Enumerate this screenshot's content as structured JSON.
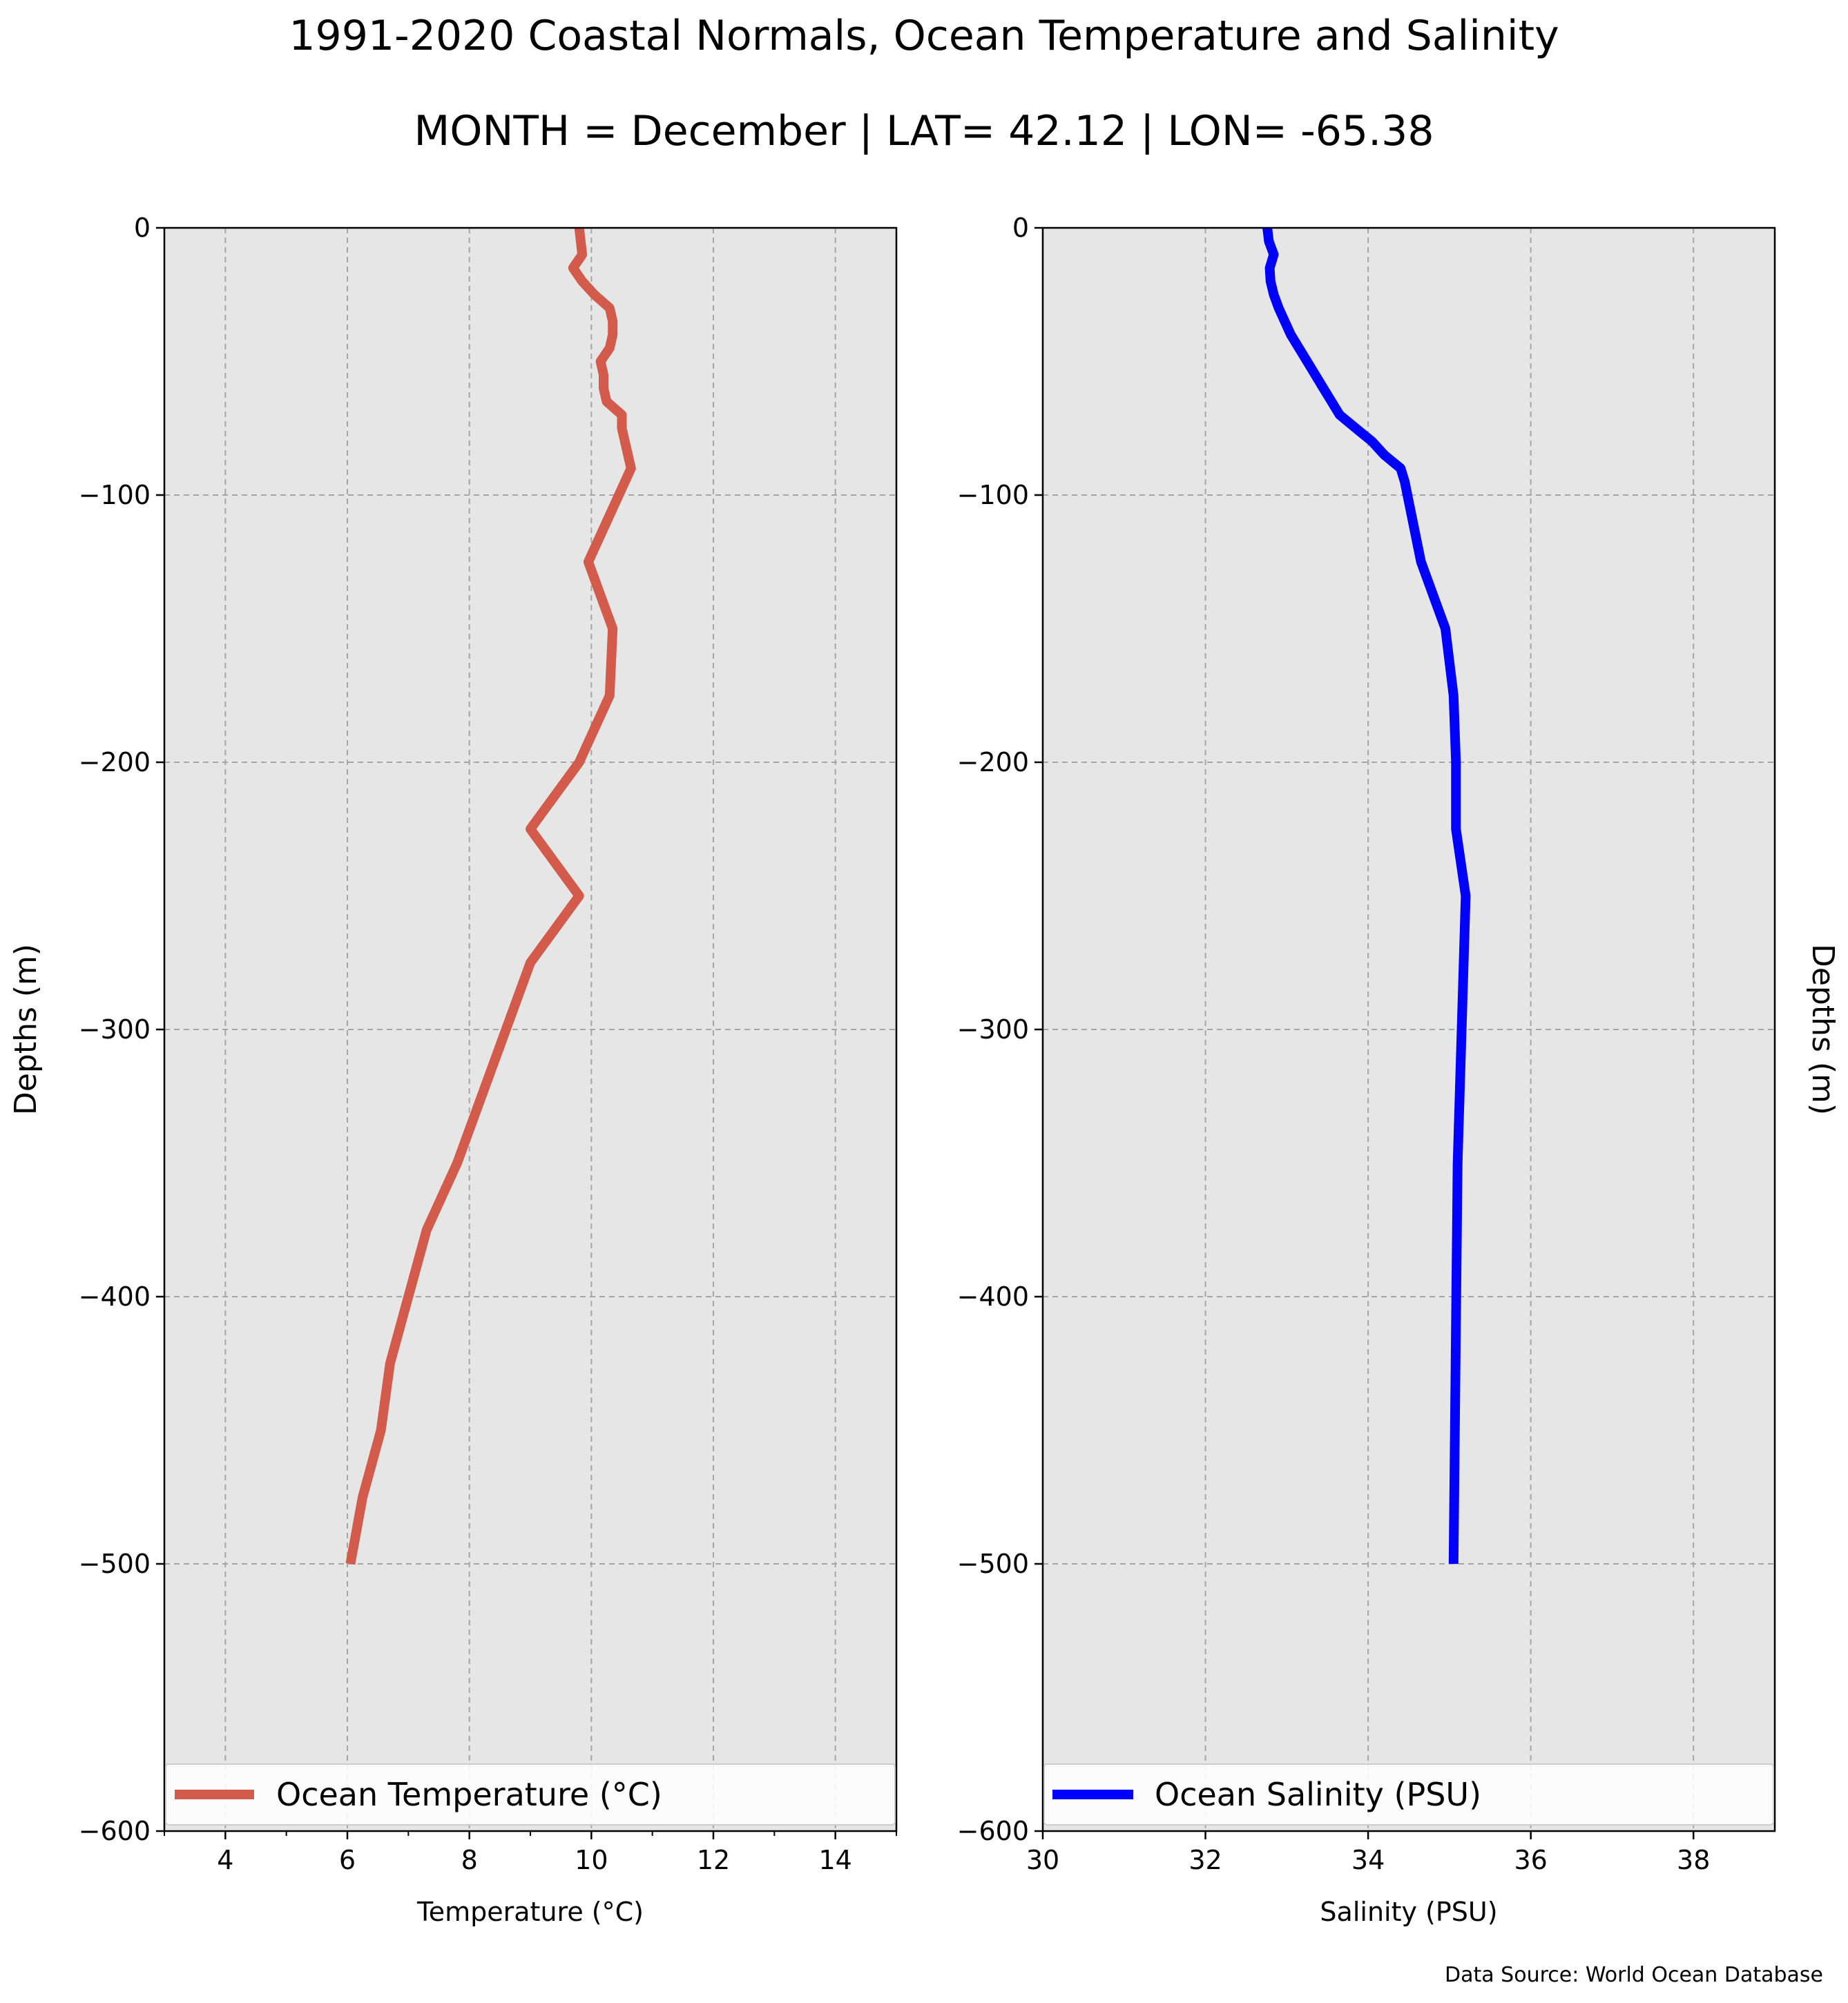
{
  "title": "1991-2020 Coastal Normals, Ocean Temperature and Salinity",
  "subtitle": "MONTH = December | LAT= 42.12 | LON= -65.38",
  "source": "Data Source: World Ocean Database",
  "colors": {
    "temperature": "#d35b4b",
    "salinity": "#0000ff",
    "axes_bg": "#e6e6e6",
    "grid": "#a6a6a6"
  },
  "chart_data": [
    {
      "type": "line",
      "xlabel": "Temperature ($^\\circ$C)",
      "xlabel_display": "Temperature (°C)",
      "ylabel": "Depths (m)",
      "xlim": [
        3,
        15
      ],
      "ylim": [
        -600,
        0
      ],
      "xticks": [
        4,
        6,
        8,
        10,
        12,
        14
      ],
      "yticks": [
        0,
        -100,
        -200,
        -300,
        -400,
        -500,
        -600
      ],
      "ytick_labels": [
        "0",
        "−100",
        "−200",
        "−300",
        "−400",
        "−500",
        "−600"
      ],
      "grid": true,
      "legend": "bottom",
      "series": [
        {
          "name": "Ocean Temperature (°C)",
          "x": [
            9.8,
            9.85,
            9.7,
            9.85,
            10.05,
            10.3,
            10.35,
            10.35,
            10.3,
            10.15,
            10.2,
            10.2,
            10.25,
            10.5,
            10.5,
            10.55,
            10.65,
            9.95,
            10.35,
            10.3,
            9.8,
            9.0,
            9.8,
            9.0,
            7.8,
            7.3,
            7.0,
            6.7,
            6.55,
            6.25,
            6.05
          ],
          "y": [
            0,
            -10,
            -15,
            -20,
            -25,
            -30,
            -35,
            -40,
            -45,
            -50,
            -55,
            -60,
            -65,
            -70,
            -75,
            -80,
            -90,
            -125,
            -150,
            -175,
            -200,
            -225,
            -250,
            -275,
            -350,
            -375,
            -400,
            -425,
            -450,
            -475,
            -500
          ]
        }
      ]
    },
    {
      "type": "line",
      "xlabel": "Salinity (PSU)",
      "ylabel": "Depths (m)",
      "xlim": [
        30,
        39
      ],
      "ylim": [
        -600,
        0
      ],
      "xticks": [
        30,
        32,
        34,
        36,
        38
      ],
      "yticks": [
        0,
        -100,
        -200,
        -300,
        -400,
        -500,
        -600
      ],
      "ytick_labels": [
        "0",
        "−100",
        "−200",
        "−300",
        "−400",
        "−500",
        "−600"
      ],
      "grid": true,
      "legend": "bottom",
      "series": [
        {
          "name": "Ocean Salinity (PSU)",
          "x": [
            32.76,
            32.78,
            32.84,
            32.79,
            32.8,
            32.84,
            32.9,
            33.05,
            33.25,
            33.45,
            33.65,
            33.85,
            34.05,
            34.2,
            34.4,
            34.45,
            34.65,
            34.95,
            35.05,
            35.08,
            35.08,
            35.2,
            35.1,
            35.05
          ],
          "y": [
            0,
            -5,
            -10,
            -15,
            -20,
            -25,
            -30,
            -40,
            -50,
            -60,
            -70,
            -75,
            -80,
            -85,
            -90,
            -95,
            -125,
            -150,
            -175,
            -200,
            -225,
            -250,
            -350,
            -500
          ]
        }
      ]
    }
  ]
}
